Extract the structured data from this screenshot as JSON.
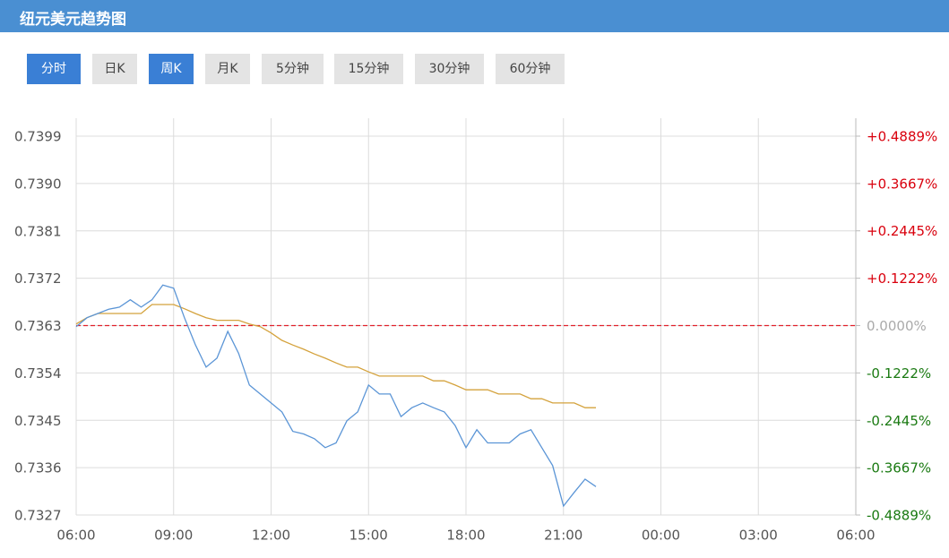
{
  "header": {
    "title": "纽元美元趋势图"
  },
  "tabs": [
    {
      "label": "分时",
      "active": true
    },
    {
      "label": "日K",
      "active": false
    },
    {
      "label": "周K",
      "active": true
    },
    {
      "label": "月K",
      "active": false
    },
    {
      "label": "5分钟",
      "active": false
    },
    {
      "label": "15分钟",
      "active": false
    },
    {
      "label": "30分钟",
      "active": false
    },
    {
      "label": "60分钟",
      "active": false
    }
  ],
  "chart_data": {
    "type": "line",
    "x": [
      "06:00",
      "06:20",
      "06:40",
      "07:00",
      "07:20",
      "07:40",
      "08:00",
      "08:20",
      "08:40",
      "09:00",
      "09:20",
      "09:40",
      "10:00",
      "10:20",
      "10:40",
      "11:00",
      "11:20",
      "11:40",
      "12:00",
      "12:20",
      "12:40",
      "13:00",
      "13:20",
      "13:40",
      "14:00",
      "14:20",
      "14:40",
      "15:00",
      "15:20",
      "15:40",
      "16:00",
      "16:20",
      "16:40",
      "17:00",
      "17:20",
      "17:40",
      "18:00",
      "18:20",
      "18:40",
      "19:00",
      "19:20",
      "19:40",
      "20:00",
      "20:20",
      "20:40",
      "21:00",
      "21:20",
      "21:40",
      "22:00"
    ],
    "series": [
      {
        "color": "#5b95d6",
        "values": [
          0.73628,
          0.73645,
          0.73653,
          0.73661,
          0.73665,
          0.73679,
          0.73665,
          0.73679,
          0.73707,
          0.73701,
          0.73645,
          0.73594,
          0.73551,
          0.73568,
          0.73619,
          0.73577,
          0.73517,
          0.735,
          0.73483,
          0.73466,
          0.73429,
          0.73424,
          0.73415,
          0.73398,
          0.73407,
          0.73449,
          0.73466,
          0.73517,
          0.735,
          0.735,
          0.73457,
          0.73474,
          0.73483,
          0.73474,
          0.73466,
          0.7344,
          0.73398,
          0.73432,
          0.73407,
          0.73407,
          0.73407,
          0.73424,
          0.73432,
          0.73398,
          0.73364,
          0.73287,
          0.73313,
          0.73338,
          0.73324
        ]
      },
      {
        "color": "#d4a23c",
        "values": [
          0.73633,
          0.73645,
          0.73653,
          0.73653,
          0.73653,
          0.73653,
          0.73653,
          0.7367,
          0.7367,
          0.7367,
          0.73662,
          0.73653,
          0.73645,
          0.7364,
          0.7364,
          0.7364,
          0.73633,
          0.73628,
          0.73616,
          0.73602,
          0.73593,
          0.73585,
          0.73576,
          0.73568,
          0.73559,
          0.73551,
          0.73551,
          0.73542,
          0.73534,
          0.73534,
          0.73534,
          0.73534,
          0.73534,
          0.73525,
          0.73525,
          0.73517,
          0.73508,
          0.73508,
          0.73508,
          0.735,
          0.735,
          0.735,
          0.73491,
          0.73491,
          0.73483,
          0.73483,
          0.73483,
          0.73474,
          0.73474
        ]
      }
    ],
    "xticks": [
      "06:00",
      "09:00",
      "12:00",
      "15:00",
      "18:00",
      "21:00",
      "00:00",
      "03:00",
      "06:00"
    ],
    "ylim": [
      0.7327,
      0.7399
    ],
    "yticks": [
      0.7327,
      0.7336,
      0.7345,
      0.7354,
      0.7363,
      0.7372,
      0.7381,
      {
        "value": 0.739,
        "label": "0.7390"
      },
      0.7399
    ],
    "baseline": 0.7363,
    "baseline_color": "#e0202a",
    "y2lim": [
      -0.4889,
      0.4889
    ],
    "y2ticks": [
      {
        "value": -0.4889,
        "label": "-0.4889%"
      },
      {
        "value": -0.3667,
        "label": "-0.3667%"
      },
      {
        "value": -0.2445,
        "label": "-0.2445%"
      },
      {
        "value": -0.1222,
        "label": "-0.1222%"
      },
      {
        "value": 0,
        "label": "0.0000%"
      },
      {
        "value": 0.1222,
        "label": "+0.1222%"
      },
      {
        "value": 0.2445,
        "label": "+0.2445%"
      },
      {
        "value": 0.3667,
        "label": "+0.3667%"
      },
      {
        "value": 0.4889,
        "label": "+0.4889%"
      }
    ],
    "up_color": "#d9000d",
    "down_color": "#1a7a12",
    "flat_color": "#aaaaaa",
    "grid": true
  }
}
